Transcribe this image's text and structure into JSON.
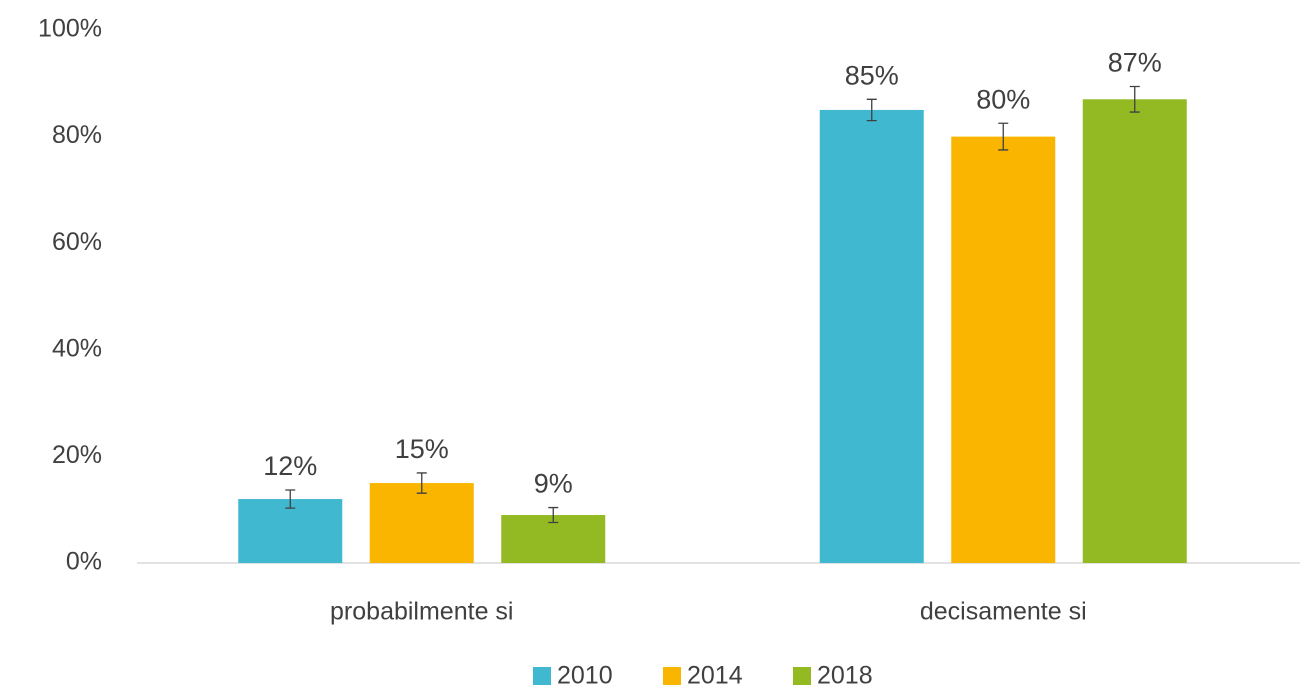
{
  "chart_data": {
    "type": "bar",
    "categories": [
      "probabilmente si",
      "decisamente si"
    ],
    "series": [
      {
        "name": "2010",
        "color": "#3fb8d0",
        "values": [
          12,
          85
        ],
        "value_labels": [
          "12%",
          "85%"
        ],
        "errors": [
          1.7,
          2.0
        ]
      },
      {
        "name": "2014",
        "color": "#f9b500",
        "values": [
          15,
          80
        ],
        "value_labels": [
          "15%",
          "80%"
        ],
        "errors": [
          1.9,
          2.5
        ]
      },
      {
        "name": "2018",
        "color": "#93ba22",
        "values": [
          9,
          87
        ],
        "value_labels": [
          "9%",
          "87%"
        ],
        "errors": [
          1.4,
          2.4
        ]
      }
    ],
    "ylim": [
      0,
      100
    ],
    "yticks": [
      {
        "value": 0,
        "label": "0%"
      },
      {
        "value": 20,
        "label": "20%"
      },
      {
        "value": 40,
        "label": "40%"
      },
      {
        "value": 60,
        "label": "60%"
      },
      {
        "value": 80,
        "label": "80%"
      },
      {
        "value": 100,
        "label": "100%"
      }
    ],
    "grid": false,
    "legend": "bottom"
  }
}
